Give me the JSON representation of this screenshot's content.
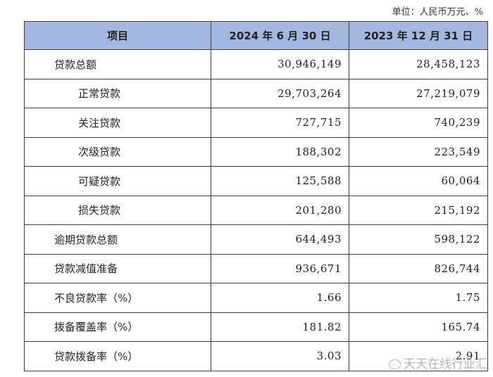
{
  "unit_note": "单位：人民币万元、%",
  "table": {
    "headers": [
      "项目",
      "2024 年 6 月 30 日",
      "2023 年 12 月 31 日"
    ],
    "rows": [
      {
        "label": "贷款总额",
        "v2024": "30,946,149",
        "v2023": "28,458,123",
        "sub": false
      },
      {
        "label": "正常贷款",
        "v2024": "29,703,264",
        "v2023": "27,219,079",
        "sub": true
      },
      {
        "label": "关注贷款",
        "v2024": "727,715",
        "v2023": "740,239",
        "sub": true
      },
      {
        "label": "次级贷款",
        "v2024": "188,302",
        "v2023": "223,549",
        "sub": true
      },
      {
        "label": "可疑贷款",
        "v2024": "125,588",
        "v2023": "60,064",
        "sub": true
      },
      {
        "label": "损失贷款",
        "v2024": "201,280",
        "v2023": "215,192",
        "sub": true
      },
      {
        "label": "逾期贷款总额",
        "v2024": "644,493",
        "v2023": "598,122",
        "sub": false
      },
      {
        "label": "贷款减值准备",
        "v2024": "936,671",
        "v2023": "826,744",
        "sub": false
      },
      {
        "label": "不良贷款率（%）",
        "v2024": "1.66",
        "v2023": "1.75",
        "sub": false
      },
      {
        "label": "拨备覆盖率（%）",
        "v2024": "181.82",
        "v2023": "165.74",
        "sub": false
      },
      {
        "label": "贷款拨备率（%）",
        "v2024": "3.03",
        "v2023": "2.91",
        "sub": false
      }
    ]
  },
  "watermark": "天天在线行业汇",
  "colors": {
    "header_bg": "#a4b7de",
    "border": "#3d3d3d"
  }
}
